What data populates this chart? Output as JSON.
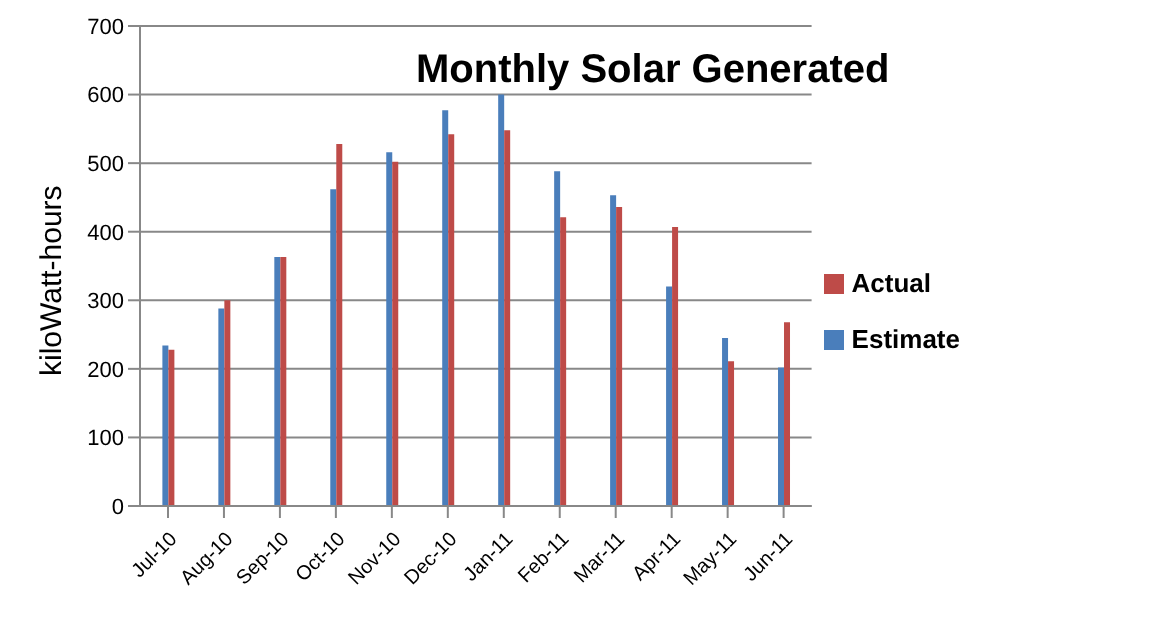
{
  "chart_data": {
    "type": "bar",
    "title": "Monthly Solar Generated",
    "ylabel": "kiloWatt-hours",
    "categories": [
      "Jul-10",
      "Aug-10",
      "Sep-10",
      "Oct-10",
      "Nov-10",
      "Dec-10",
      "Jan-11",
      "Feb-11",
      "Mar-11",
      "Apr-11",
      "May-11",
      "Jun-11"
    ],
    "series": [
      {
        "name": "Estimate",
        "color": "#4a7ebb",
        "values": [
          234,
          288,
          363,
          462,
          516,
          577,
          600,
          488,
          453,
          320,
          245,
          202
        ]
      },
      {
        "name": "Actual",
        "color": "#be4b48",
        "values": [
          228,
          300,
          363,
          528,
          502,
          542,
          548,
          421,
          436,
          407,
          211,
          268
        ]
      }
    ],
    "ylim": [
      0,
      700
    ],
    "yticks": [
      0,
      100,
      200,
      300,
      400,
      500,
      600,
      700
    ],
    "grid": "y",
    "legend": "right"
  }
}
